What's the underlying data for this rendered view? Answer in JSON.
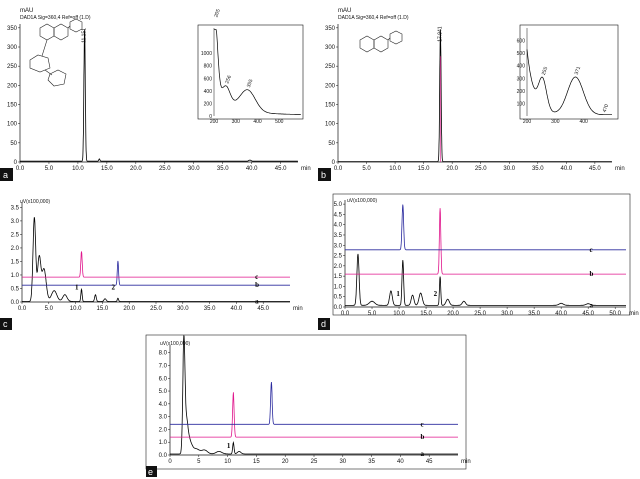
{
  "colors": {
    "axis": "#111111",
    "black": "#000000",
    "pink": "#e0168c",
    "blue": "#2a2a9e",
    "frame": "#222222"
  },
  "chart_data": [
    {
      "id": "a",
      "type": "line",
      "panel_label": "a",
      "unit_label": "mAU",
      "channel_label": "DAD1A Sig=360,4 Ref=off (1.D)",
      "xlabel": "min",
      "xlim": [
        0,
        48
      ],
      "ylim": [
        0,
        360
      ],
      "xticks": [
        0,
        5,
        10,
        15,
        20,
        25,
        30,
        35,
        40,
        45
      ],
      "yticks": [
        0,
        50,
        100,
        150,
        200,
        250,
        300,
        350
      ],
      "peaks": [
        {
          "x": 11.151,
          "height": 342,
          "label": "11.151"
        }
      ],
      "inset": {
        "xlim": [
          200,
          600
        ],
        "ylim": [
          0,
          1400
        ],
        "xticks": [
          200,
          300,
          400,
          500
        ],
        "yticks": [
          0,
          200,
          400,
          600,
          800,
          1000
        ],
        "peak_labels": [
          {
            "x": 205,
            "label": "205"
          },
          {
            "x": 256,
            "label": "256"
          },
          {
            "x": 355,
            "label": "355"
          }
        ]
      }
    },
    {
      "id": "b",
      "type": "line",
      "panel_label": "b",
      "unit_label": "mAU",
      "channel_label": "DAD1A Sig=360,4 Ref=off (1.D)",
      "xlabel": "min",
      "xlim": [
        0,
        48
      ],
      "ylim": [
        0,
        360
      ],
      "xticks": [
        0,
        5,
        10,
        15,
        20,
        25,
        30,
        35,
        40,
        45
      ],
      "yticks": [
        0,
        50,
        100,
        150,
        200,
        250,
        300,
        350
      ],
      "peaks": [
        {
          "x": 17.941,
          "height": 345,
          "label": "17.941"
        }
      ],
      "inset": {
        "xlim": [
          200,
          500
        ],
        "ylim": [
          0,
          700
        ],
        "xticks": [
          200,
          300,
          400
        ],
        "yticks": [
          100,
          200,
          300,
          400,
          500,
          600
        ],
        "peak_labels": [
          {
            "x": 255,
            "label": "255"
          },
          {
            "x": 371,
            "label": "371"
          },
          {
            "x": 470,
            "label": "470"
          }
        ]
      }
    },
    {
      "id": "c",
      "type": "line",
      "panel_label": "c",
      "unit_label": "uV(x100,000)",
      "xlabel": "min",
      "xlim": [
        0,
        50
      ],
      "ylim": [
        0,
        3.7
      ],
      "xticks": [
        0,
        5,
        10,
        15,
        20,
        25,
        30,
        35,
        40,
        45
      ],
      "yticks": [
        0,
        0.5,
        1.0,
        1.5,
        2.0,
        2.5,
        3.0,
        3.5
      ],
      "series": [
        {
          "name": "a",
          "color": "black",
          "baseline": 0.02
        },
        {
          "name": "b",
          "color": "blue",
          "baseline": 0.62
        },
        {
          "name": "c",
          "color": "pink",
          "baseline": 0.92
        }
      ],
      "peak_labels": [
        {
          "x": 11.1,
          "label": "1"
        },
        {
          "x": 17.9,
          "label": "2"
        }
      ]
    },
    {
      "id": "d",
      "type": "line",
      "panel_label": "d",
      "unit_label": "uV(x100,000)",
      "xlabel": "min",
      "xlim": [
        0,
        52
      ],
      "ylim": [
        0,
        5.2
      ],
      "xticks": [
        0,
        5,
        10,
        15,
        20,
        25,
        30,
        35,
        40,
        45,
        50
      ],
      "yticks": [
        0,
        0.5,
        1.0,
        1.5,
        2.0,
        2.5,
        3.0,
        3.5,
        4.0,
        4.5,
        5.0
      ],
      "series": [
        {
          "name": "a",
          "color": "black",
          "baseline": 0.08
        },
        {
          "name": "b",
          "color": "pink",
          "baseline": 1.6
        },
        {
          "name": "c",
          "color": "blue",
          "baseline": 2.78
        }
      ],
      "peak_labels": [
        {
          "x": 10.7,
          "label": "1"
        },
        {
          "x": 17.6,
          "label": "2"
        }
      ]
    },
    {
      "id": "e",
      "type": "line",
      "panel_label": "e",
      "unit_label": "uV(x100,000)",
      "xlabel": "min",
      "xlim": [
        0,
        50
      ],
      "ylim": [
        0,
        8.6
      ],
      "xticks": [
        0,
        5,
        10,
        15,
        20,
        25,
        30,
        35,
        40,
        45
      ],
      "yticks": [
        0,
        1.0,
        2.0,
        3.0,
        4.0,
        5.0,
        6.0,
        7.0,
        8.0
      ],
      "series": [
        {
          "name": "a",
          "color": "black",
          "baseline": 0.08
        },
        {
          "name": "b",
          "color": "pink",
          "baseline": 1.4
        },
        {
          "name": "c",
          "color": "blue",
          "baseline": 2.4
        }
      ],
      "peak_labels": [
        {
          "x": 11.0,
          "label": "1"
        }
      ]
    }
  ]
}
